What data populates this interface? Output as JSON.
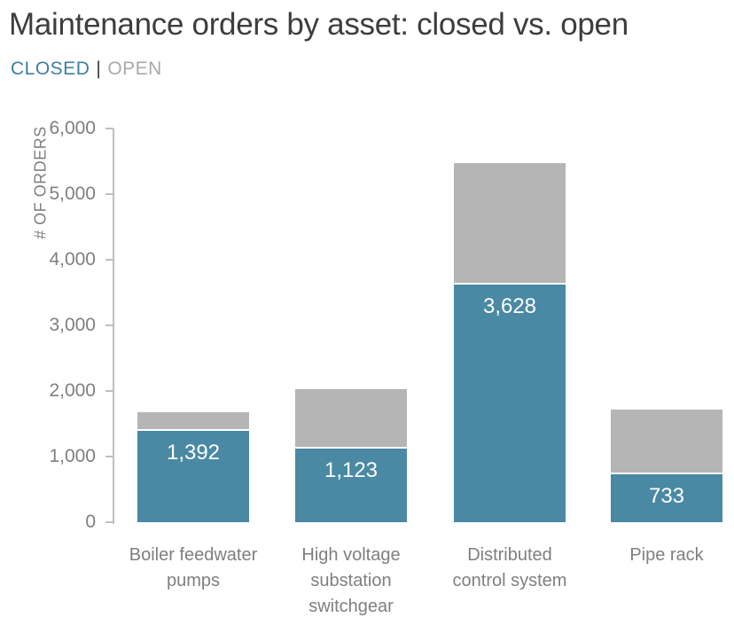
{
  "title": "Maintenance orders by asset: closed vs. open",
  "legend": {
    "closed_label": "CLOSED",
    "separator": "|",
    "open_label": "OPEN"
  },
  "y_axis": {
    "title": "# OF ORDERS",
    "tick_labels_top_to_bottom": [
      "6,000",
      "5,000",
      "4,000",
      "3,000",
      "2,000",
      "1,000",
      "0"
    ]
  },
  "colors": {
    "closed_bar": "#4a89a3",
    "open_bar": "#b5b5b5",
    "legend_closed_text": "#3e7fa0",
    "legend_open_text": "#a9a9a9",
    "legend_separator_text": "#3c3c3c",
    "title_text": "#3d3d3d",
    "axis_text": "#7f7f7f",
    "axis_line": "#bfbfbf",
    "bar_label_text": "#ffffff"
  },
  "chart_data": {
    "type": "bar",
    "stacked": true,
    "title": "Maintenance orders by asset: closed vs. open",
    "xlabel": "",
    "ylabel": "# OF ORDERS",
    "ylim": [
      0,
      6000
    ],
    "ytick_interval": 1000,
    "grid": false,
    "legend_position": "top-left",
    "categories": [
      "Boiler feedwater pumps",
      "High voltage substation switchgear",
      "Distributed control system",
      "Pipe rack"
    ],
    "category_label_lines": [
      [
        "Boiler feedwater",
        "pumps"
      ],
      [
        "High voltage",
        "substation",
        "switchgear"
      ],
      [
        "Distributed",
        "control system"
      ],
      [
        "Pipe rack"
      ]
    ],
    "series": [
      {
        "name": "CLOSED",
        "values": [
          1392,
          1123,
          3628,
          733
        ],
        "data_labels": [
          "1,392",
          "1,123",
          "3,628",
          "733"
        ],
        "labels_visible": true
      },
      {
        "name": "OPEN",
        "values": [
          290,
          910,
          1850,
          990
        ],
        "values_estimated_from_pixels": true,
        "labels_visible": false
      }
    ],
    "totals_estimated": [
      1682,
      2033,
      5478,
      1723
    ]
  }
}
